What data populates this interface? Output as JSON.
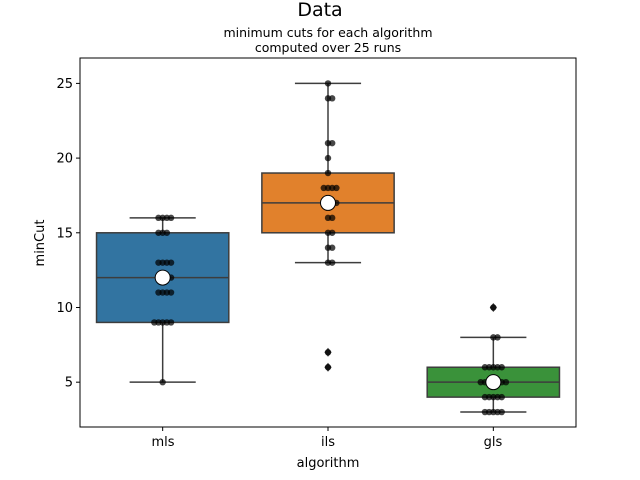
{
  "chart_data": {
    "type": "box",
    "title": "Data",
    "subtitle_lines": [
      "minimum cuts for each algorithm",
      "computed over 25 runs"
    ],
    "xlabel": "algorithm",
    "ylabel": "minCut",
    "ylim": [
      2,
      26.7
    ],
    "yticks": [
      5,
      10,
      15,
      20,
      25
    ],
    "categories": [
      "mls",
      "ils",
      "gls"
    ],
    "colors": [
      "#3274a1",
      "#e1812c",
      "#3a923a"
    ],
    "boxes": [
      {
        "name": "mls",
        "whisker_low": 5,
        "q1": 9,
        "median": 12,
        "q3": 15,
        "whisker_high": 16,
        "mean": 12.0,
        "outliers": []
      },
      {
        "name": "ils",
        "whisker_low": 13,
        "q1": 15,
        "median": 17,
        "q3": 19,
        "whisker_high": 25,
        "mean": 17.0,
        "outliers": [
          6,
          7
        ]
      },
      {
        "name": "gls",
        "whisker_low": 3,
        "q1": 4,
        "median": 5,
        "q3": 6,
        "whisker_high": 8,
        "mean": 5.0,
        "outliers": [
          10
        ]
      }
    ],
    "points": [
      [
        16,
        16,
        16,
        15,
        15,
        15,
        12,
        12,
        12,
        11,
        11,
        11,
        11,
        13,
        13,
        13,
        13,
        9,
        9,
        9,
        9,
        9,
        12,
        5,
        16
      ],
      [
        25,
        24,
        24,
        21,
        21,
        20,
        19,
        18,
        18,
        18,
        17,
        17,
        17,
        16,
        16,
        15,
        15,
        14,
        14,
        13,
        13,
        7,
        6,
        18,
        17
      ],
      [
        10,
        8,
        8,
        6,
        6,
        6,
        6,
        5,
        5,
        5,
        5,
        5,
        4,
        4,
        4,
        4,
        3,
        3,
        3,
        3,
        6,
        5,
        4,
        3,
        5
      ]
    ]
  }
}
